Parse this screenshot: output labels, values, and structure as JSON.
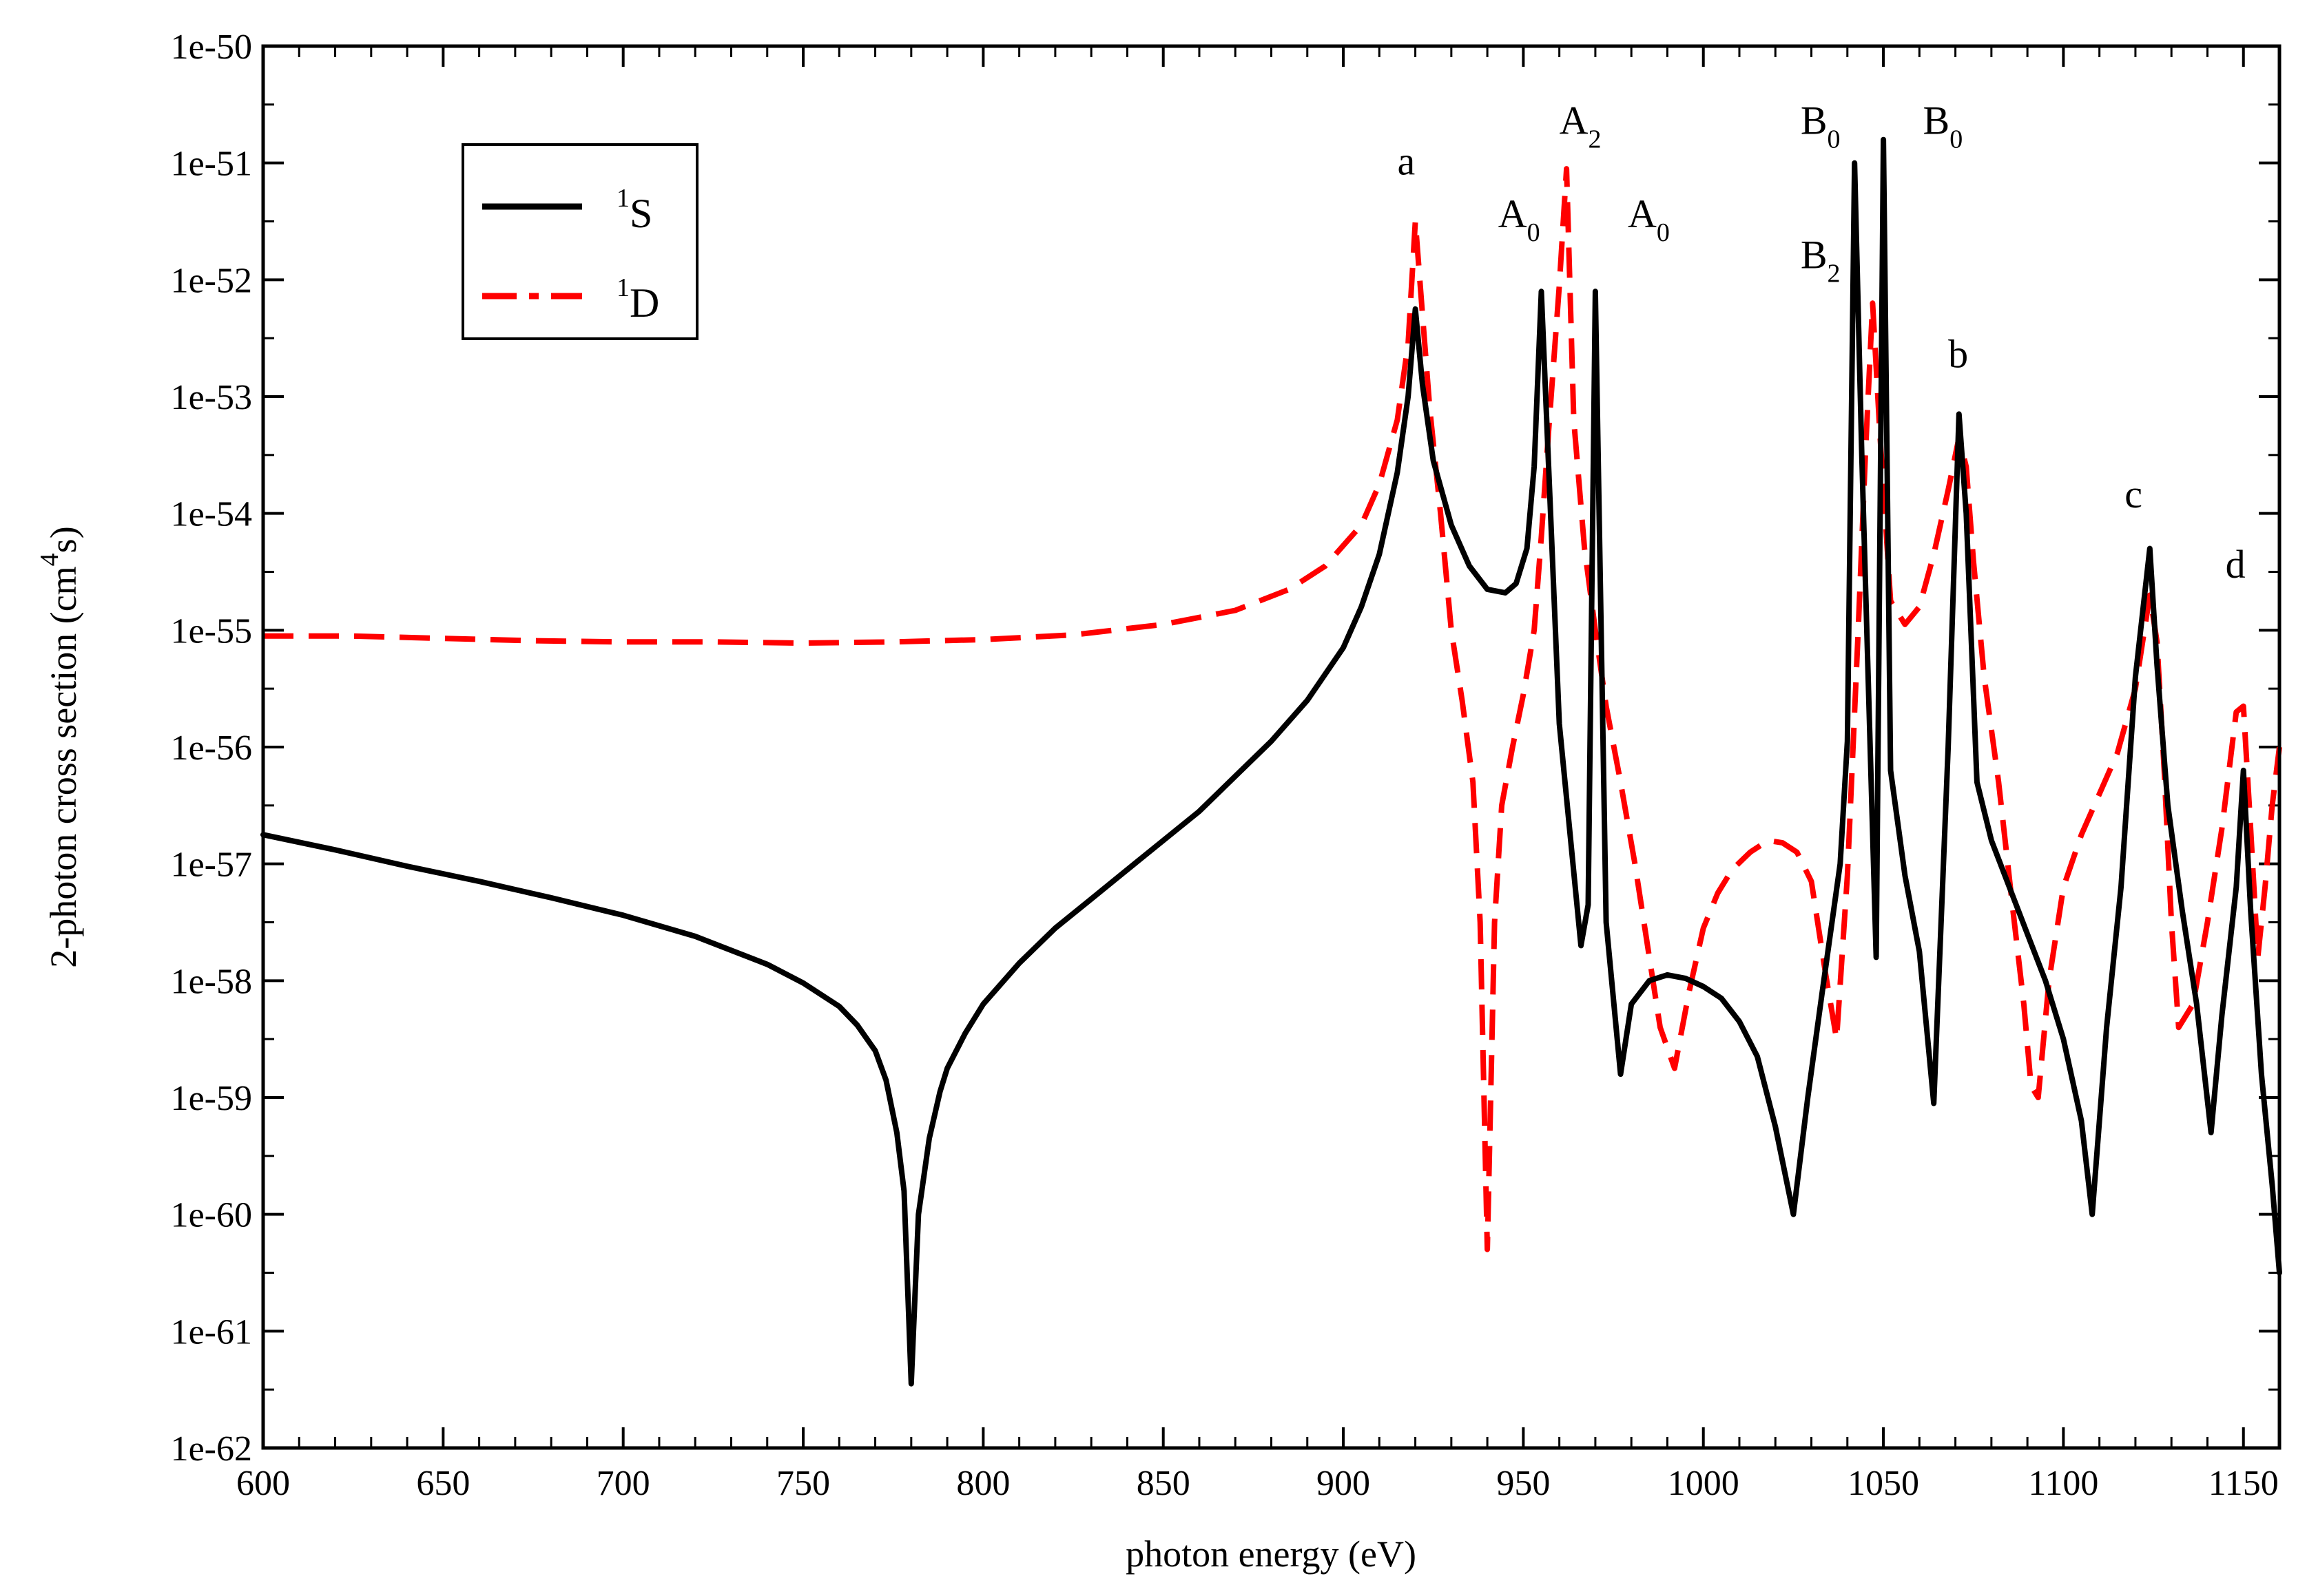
{
  "chart_data": {
    "type": "line",
    "title": "",
    "xlabel": "photon energy (eV)",
    "ylabel": "2-photon cross section (cm",
    "ylabel_sup": "4",
    "ylabel_end": "s)",
    "xlim": [
      600,
      1160
    ],
    "ylim_log10": [
      -62,
      -50
    ],
    "yscale": "log",
    "x_ticks": [
      600,
      650,
      700,
      750,
      800,
      850,
      900,
      950,
      1000,
      1050,
      1100,
      1150
    ],
    "x_tick_labels": [
      "600",
      "650",
      "700",
      "750",
      "800",
      "850",
      "900",
      "950",
      "1000",
      "1050",
      "1100",
      "1150"
    ],
    "y_ticks_log10": [
      -62,
      -61,
      -60,
      -59,
      -58,
      -57,
      -56,
      -55,
      -54,
      -53,
      -52,
      -51,
      -50
    ],
    "y_tick_labels": [
      "1e-62",
      "1e-61",
      "1e-60",
      "1e-59",
      "1e-58",
      "1e-57",
      "1e-56",
      "1e-55",
      "1e-54",
      "1e-53",
      "1e-52",
      "1e-51",
      "1e-50"
    ],
    "legend": {
      "placement": "top-left",
      "entries": [
        {
          "sup": "1",
          "label": "S",
          "color": "#000000",
          "style": "solid"
        },
        {
          "sup": "1",
          "label": "D",
          "color": "#ff0000",
          "style": "dashed"
        }
      ]
    },
    "annotations": [
      {
        "text": "a",
        "sub": "",
        "x": 915,
        "y_log10": -51.1
      },
      {
        "text": "A",
        "sub": "0",
        "x": 943,
        "y_log10": -51.55
      },
      {
        "text": "A",
        "sub": "2",
        "x": 960,
        "y_log10": -50.75
      },
      {
        "text": "A",
        "sub": "0",
        "x": 979,
        "y_log10": -51.55
      },
      {
        "text": "B",
        "sub": "0",
        "x": 1027,
        "y_log10": -50.75
      },
      {
        "text": "B",
        "sub": "0",
        "x": 1061,
        "y_log10": -50.75
      },
      {
        "text": "B",
        "sub": "2",
        "x": 1027,
        "y_log10": -51.9
      },
      {
        "text": "b",
        "sub": "",
        "x": 1068,
        "y_log10": -52.75
      },
      {
        "text": "c",
        "sub": "",
        "x": 1117,
        "y_log10": -53.95
      },
      {
        "text": "d",
        "sub": "",
        "x": 1145,
        "y_log10": -54.55
      }
    ],
    "series": [
      {
        "name": "1S",
        "color": "#000000",
        "dash": "solid",
        "x": [
          600,
          620,
          640,
          660,
          680,
          700,
          720,
          740,
          750,
          760,
          765,
          770,
          773,
          776,
          778,
          780,
          782,
          785,
          788,
          790,
          795,
          800,
          810,
          820,
          830,
          840,
          850,
          860,
          870,
          880,
          890,
          900,
          905,
          910,
          915,
          918,
          920,
          922,
          925,
          930,
          935,
          940,
          945,
          948,
          951,
          953,
          955,
          960,
          966,
          968,
          970,
          973,
          977,
          980,
          985,
          990,
          995,
          1000,
          1005,
          1010,
          1015,
          1020,
          1025,
          1029,
          1033,
          1038,
          1040,
          1042,
          1044,
          1048,
          1050,
          1052,
          1056,
          1060,
          1064,
          1068,
          1071,
          1073,
          1076,
          1080,
          1085,
          1090,
          1095,
          1100,
          1105,
          1108,
          1112,
          1116,
          1120,
          1124,
          1126,
          1129,
          1133,
          1137,
          1141,
          1144,
          1148,
          1150,
          1152,
          1155,
          1158,
          1160
        ],
        "y_log10": [
          -56.75,
          -56.88,
          -57.02,
          -57.15,
          -57.29,
          -57.44,
          -57.62,
          -57.86,
          -58.02,
          -58.22,
          -58.38,
          -58.6,
          -58.85,
          -59.3,
          -59.8,
          -61.45,
          -60.0,
          -59.35,
          -58.95,
          -58.75,
          -58.45,
          -58.2,
          -57.85,
          -57.55,
          -57.3,
          -57.05,
          -56.8,
          -56.55,
          -56.25,
          -55.95,
          -55.6,
          -55.15,
          -54.8,
          -54.35,
          -53.65,
          -53.0,
          -52.25,
          -52.9,
          -53.55,
          -54.1,
          -54.45,
          -54.65,
          -54.68,
          -54.6,
          -54.3,
          -53.6,
          -52.1,
          -55.8,
          -57.7,
          -57.35,
          -52.1,
          -57.5,
          -58.8,
          -58.2,
          -58.0,
          -57.95,
          -57.98,
          -58.05,
          -58.15,
          -58.35,
          -58.65,
          -59.25,
          -60.0,
          -59.0,
          -58.1,
          -57.0,
          -55.95,
          -51.0,
          -53.5,
          -57.8,
          -50.8,
          -56.2,
          -57.1,
          -57.75,
          -59.05,
          -56.0,
          -53.15,
          -54.0,
          -56.3,
          -56.8,
          -57.2,
          -57.6,
          -58.0,
          -58.5,
          -59.2,
          -60.0,
          -58.4,
          -57.2,
          -55.4,
          -54.3,
          -55.3,
          -56.5,
          -57.4,
          -58.2,
          -59.3,
          -58.3,
          -57.2,
          -56.2,
          -57.4,
          -58.8,
          -59.75,
          -60.5
        ]
      },
      {
        "name": "1D",
        "color": "#ff0000",
        "dash": "dashed",
        "x": [
          600,
          625,
          650,
          675,
          700,
          725,
          750,
          775,
          800,
          825,
          850,
          870,
          885,
          895,
          905,
          910,
          915,
          918,
          920,
          922,
          924,
          927,
          930,
          933,
          936,
          938,
          940,
          942,
          944,
          947,
          950,
          953,
          955,
          957,
          960,
          962,
          964,
          967,
          970,
          973,
          977,
          981,
          985,
          988,
          992,
          996,
          1000,
          1004,
          1008,
          1013,
          1018,
          1022,
          1026,
          1030,
          1034,
          1037,
          1040,
          1043,
          1045,
          1047,
          1049,
          1052,
          1056,
          1060,
          1064,
          1068,
          1071,
          1073,
          1075,
          1078,
          1082,
          1086,
          1089,
          1091,
          1093,
          1096,
          1100,
          1105,
          1110,
          1115,
          1120,
          1124,
          1126,
          1128,
          1130,
          1132,
          1136,
          1140,
          1144,
          1148,
          1150,
          1152,
          1154,
          1156,
          1158,
          1160
        ],
        "y_log10": [
          -55.05,
          -55.05,
          -55.07,
          -55.09,
          -55.1,
          -55.1,
          -55.11,
          -55.1,
          -55.08,
          -55.04,
          -54.95,
          -54.83,
          -54.65,
          -54.45,
          -54.1,
          -53.75,
          -53.2,
          -52.55,
          -51.5,
          -52.3,
          -53.1,
          -54.0,
          -55.0,
          -55.6,
          -56.3,
          -57.5,
          -60.3,
          -57.5,
          -56.5,
          -56.0,
          -55.55,
          -55.0,
          -54.2,
          -53.3,
          -52.05,
          -51.05,
          -53.2,
          -54.3,
          -55.0,
          -55.65,
          -56.3,
          -57.0,
          -57.8,
          -58.4,
          -58.75,
          -58.1,
          -57.55,
          -57.25,
          -57.05,
          -56.9,
          -56.8,
          -56.82,
          -56.9,
          -57.15,
          -57.95,
          -58.5,
          -57.1,
          -55.0,
          -53.5,
          -52.2,
          -53.3,
          -54.75,
          -54.95,
          -54.8,
          -54.35,
          -53.8,
          -53.35,
          -53.6,
          -54.4,
          -55.4,
          -56.3,
          -57.4,
          -58.2,
          -58.9,
          -59.0,
          -58.0,
          -57.2,
          -56.75,
          -56.4,
          -56.05,
          -55.5,
          -54.7,
          -55.1,
          -56.2,
          -57.5,
          -58.4,
          -58.2,
          -57.5,
          -56.7,
          -55.7,
          -55.65,
          -56.7,
          -57.8,
          -57.2,
          -56.5,
          -56.0
        ]
      }
    ]
  }
}
